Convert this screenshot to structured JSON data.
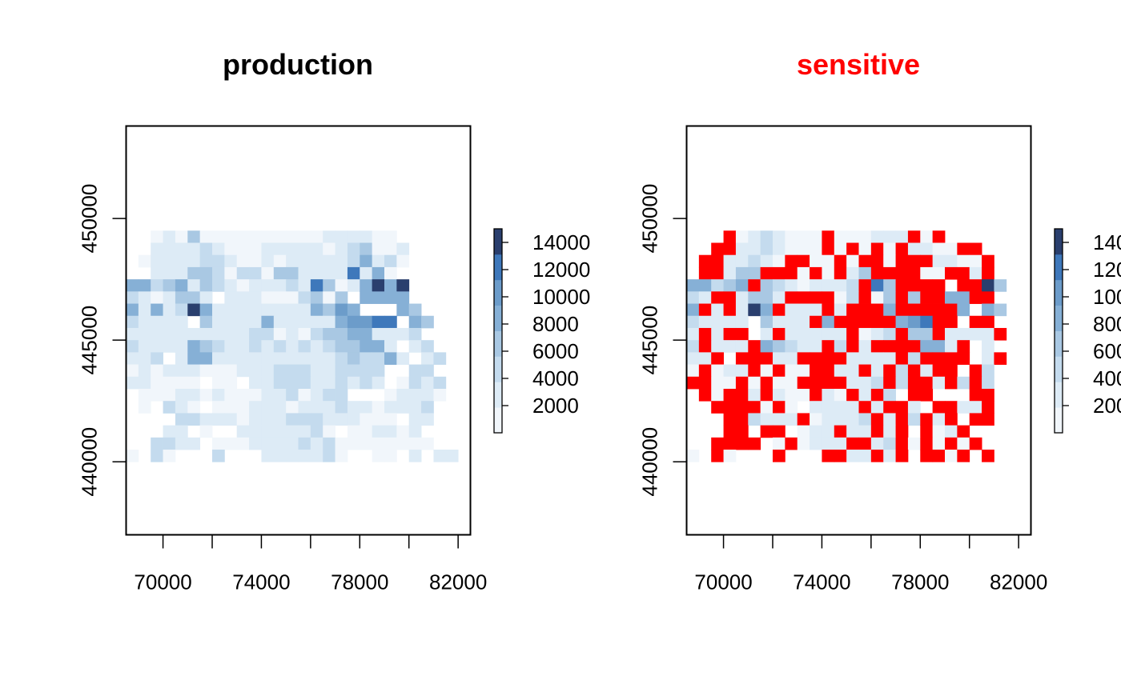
{
  "palette": [
    "#F1F6FB",
    "#DDEBF6",
    "#C4DBEE",
    "#A9C8E3",
    "#86B0D6",
    "#6C9CCA",
    "#3E78BB",
    "#2A3F6E"
  ],
  "sensitive_color": "#FF0000",
  "chart_data": [
    {
      "type": "heatmap",
      "title": "production",
      "title_color": "#000000",
      "xlim": [
        68500,
        82500
      ],
      "ylim": [
        437000,
        453800
      ],
      "x_ticks": [
        70000,
        72000,
        74000,
        76000,
        78000,
        80000,
        82000
      ],
      "x_tick_labels": [
        "70000",
        "74000",
        "78000",
        "82000"
      ],
      "y_ticks": [
        440000,
        445000,
        450000
      ],
      "y_tick_labels": [
        "440000",
        "445000",
        "450000"
      ],
      "legend_range": [
        0,
        15000
      ],
      "legend_ticks": [
        "2000",
        "4000",
        "6000",
        "8000",
        "10000",
        "12000",
        "14000"
      ],
      "grid": {
        "x_start": 68500,
        "y_start": 440000,
        "cell_size": 500,
        "value_scale": "0=no data, 1-8 = colour class index into palette",
        "rows_top_to_bottom": [
          "..12141111111111222211",
          "..222232111222221234112",
          ".1222233211212222235231",
          "..22244313314422227251",
          "55345243212223274125858",
          "3212442.2221113414.5555",
          "5252385222222225465...54",
          "32222.4222252222256677.54",
          "222222222233121344552223",
          "3222254322323232344552.23",
          "223.2552222222222343352.23",
          "121222111222333223333..33",
          "221111.11.22333223232.1323",
          ".11122121112231233...12221",
          ".1.321.111222122232212223",
          "....332221222333222111.22",
          "...22.1..22222231.112212",
          "..3322.111222232311111111",
          "1.31...3...2222231..11.2.22"
        ]
      }
    },
    {
      "type": "heatmap",
      "title": "sensitive",
      "title_color": "#FF0000",
      "xlim": [
        68500,
        82500
      ],
      "ylim": [
        437000,
        453800
      ],
      "x_ticks": [
        70000,
        72000,
        74000,
        76000,
        78000,
        80000,
        82000
      ],
      "x_tick_labels": [
        "70000",
        "74000",
        "78000",
        "82000"
      ],
      "y_ticks": [
        440000,
        445000,
        450000
      ],
      "y_tick_labels": [
        "440000",
        "445000",
        "450000"
      ],
      "legend_range": [
        0,
        15000
      ],
      "legend_ticks": [
        "2000",
        "4000",
        "6000",
        "8000",
        "10000",
        "12000",
        "14000"
      ],
      "grid": {
        "x_start": 68500,
        "y_start": 440000,
        "cell_size": 500,
        "value_scale": "0=no data, 1-8 = colour class index, R = sensitive cell",
        "rows_top_to_bottom": [
          "...R1232111R111222R1R",
          "..RR2232111R1R1R1R2211RR",
          ".RR22321RR11R1RR1RRR2211R",
          ".RR244RRR1R1R24RRRR11RR2R",
          "55345R43212223R74RRRR.RR84",
          "32RR2442RRRR13R14R4RR55RR",
          "5R2R285R222R2RRR5RRRRR5.54",
          "32222.4222R5RRRRR567RR.RR",
          "2R2RR.2R22222R123R44R2222R",
          "3R222R54322R3R2RRRR552R.2",
          "22R.RRR22RRRR2222R3RRRR.2R",
          "1R122R1R11RR22R2R3R2RR.R3",
          "RR11R1R11RRRR223R3RR2R3R3",
          ".R1RR2R211R21R2R3.RR...RR",
          "..RRRR1R1.2222R2RR2.RR22R",
          "...RR3222R12223R2R3R2R.RR",
          "...RR.RR.122R22R2R.R12R",
          "..RRRR.1R1222RR23R1R1R1R",
          "1.R1...R...RR22R2R.RR1R.R"
        ]
      }
    }
  ]
}
